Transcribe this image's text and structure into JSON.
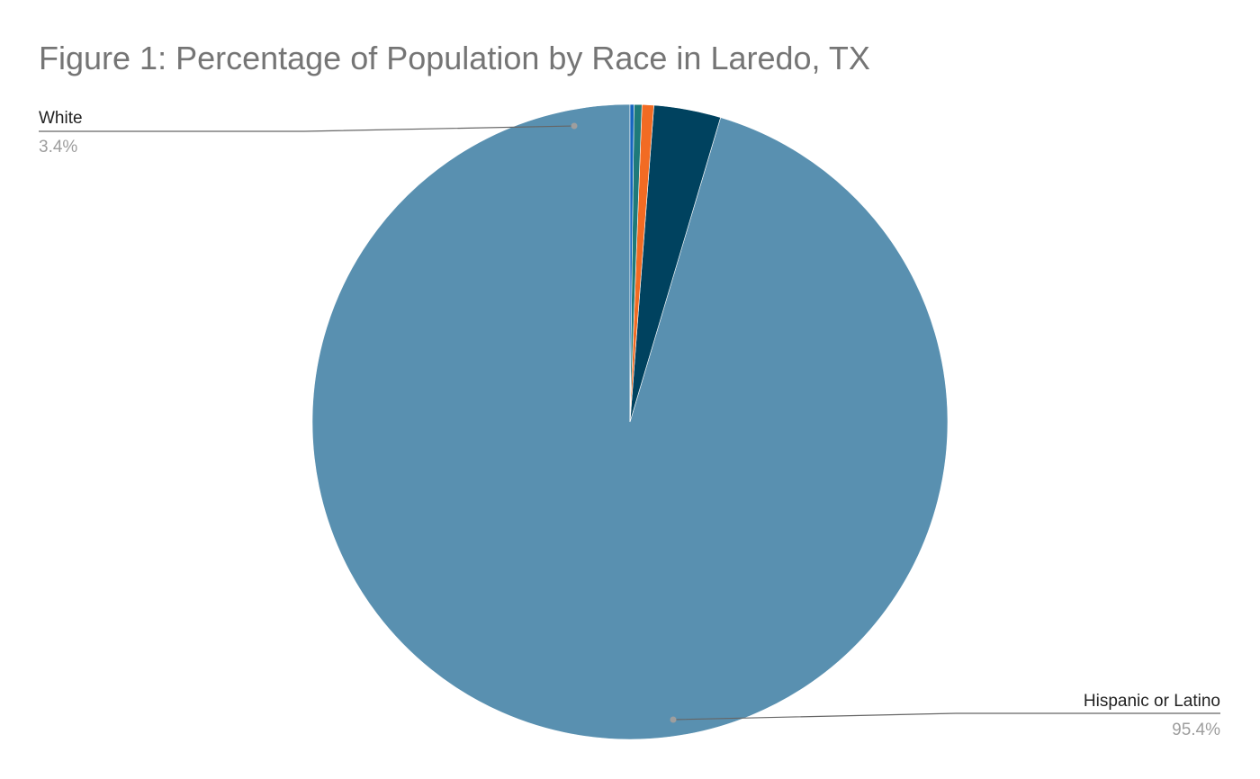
{
  "chart_data": {
    "type": "pie",
    "title": "Figure 1: Percentage of Population by Race in Laredo, TX",
    "slices": [
      {
        "label": "Hispanic or Latino",
        "value": 95.4,
        "display": "95.4%",
        "color": "#5990b0",
        "labeled": true
      },
      {
        "label": "White",
        "value": 3.4,
        "display": "3.4%",
        "color": "#00425f",
        "labeled": true
      },
      {
        "label": "",
        "value": 0.6,
        "display": "",
        "color": "#f26b23",
        "labeled": false
      },
      {
        "label": "",
        "value": 0.4,
        "display": "",
        "color": "#1e7a7a",
        "labeled": false
      },
      {
        "label": "",
        "value": 0.2,
        "display": "",
        "color": "#1565c0",
        "labeled": false
      }
    ],
    "start": "12 o'clock",
    "direction": "clockwise",
    "legend": "none"
  }
}
